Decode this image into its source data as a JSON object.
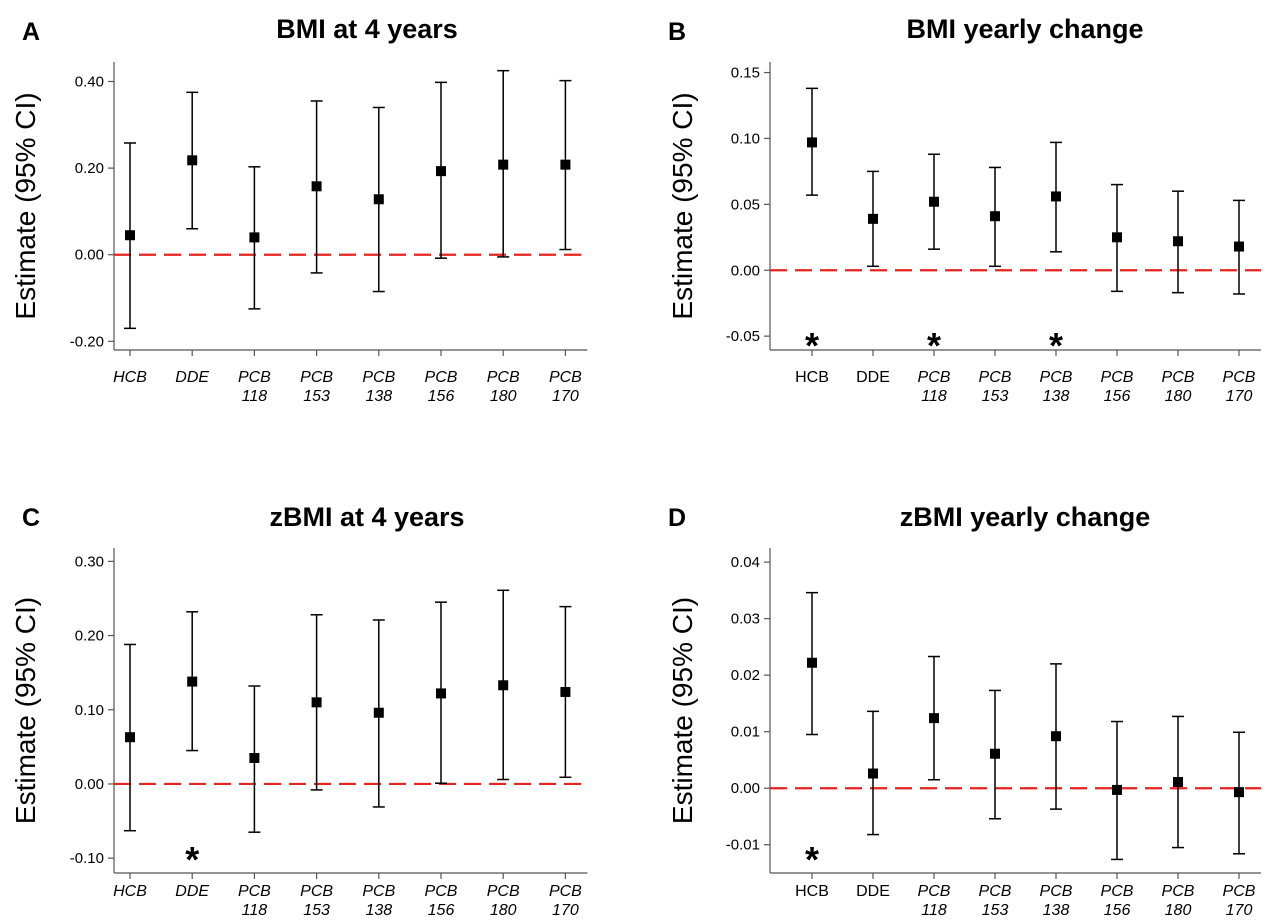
{
  "chart_data": [
    {
      "type": "scatter",
      "panel_letter": "A",
      "title": "BMI at 4 years",
      "ylabel": "Estimate (95% CI)",
      "ylim": [
        -0.22,
        0.445
      ],
      "yticks": [
        "0.40",
        "0.20",
        "0.00",
        "-0.20"
      ],
      "ytick_values": [
        0.4,
        0.2,
        0.0,
        -0.2
      ],
      "reference_line": 0,
      "italic_all_categories": true,
      "categories": [
        [
          "HCB"
        ],
        [
          "DDE"
        ],
        [
          "PCB",
          "118"
        ],
        [
          "PCB",
          "153"
        ],
        [
          "PCB",
          "138"
        ],
        [
          "PCB",
          "156"
        ],
        [
          "PCB",
          "180"
        ],
        [
          "PCB",
          "170"
        ]
      ],
      "estimate": [
        0.045,
        0.218,
        0.04,
        0.158,
        0.128,
        0.193,
        0.208,
        0.208
      ],
      "lower": [
        -0.17,
        0.06,
        -0.125,
        -0.042,
        -0.085,
        -0.008,
        -0.005,
        0.012
      ],
      "upper": [
        0.258,
        0.375,
        0.203,
        0.355,
        0.34,
        0.398,
        0.425,
        0.402
      ],
      "significance_marks": []
    },
    {
      "type": "scatter",
      "panel_letter": "B",
      "title": "BMI yearly change",
      "ylabel": "Estimate (95% CI)",
      "ylim": [
        -0.0605,
        0.158
      ],
      "yticks": [
        "0.15",
        "0.10",
        "0.05",
        "0.00",
        "-0.05"
      ],
      "ytick_values": [
        0.15,
        0.1,
        0.05,
        0.0,
        -0.05
      ],
      "reference_line": 0,
      "italic_all_categories": false,
      "categories": [
        [
          "HCB"
        ],
        [
          "DDE"
        ],
        [
          "PCB",
          "118"
        ],
        [
          "PCB",
          "153"
        ],
        [
          "PCB",
          "138"
        ],
        [
          "PCB",
          "156"
        ],
        [
          "PCB",
          "180"
        ],
        [
          "PCB",
          "170"
        ]
      ],
      "estimate": [
        0.097,
        0.039,
        0.052,
        0.041,
        0.056,
        0.025,
        0.022,
        0.018
      ],
      "lower": [
        0.057,
        0.003,
        0.016,
        0.003,
        0.014,
        -0.016,
        -0.017,
        -0.018
      ],
      "upper": [
        0.138,
        0.075,
        0.088,
        0.078,
        0.097,
        0.065,
        0.06,
        0.053
      ],
      "significance_marks": [
        "*",
        "",
        "*",
        "",
        "*",
        "",
        "",
        ""
      ]
    },
    {
      "type": "scatter",
      "panel_letter": "C",
      "title": "zBMI at 4 years",
      "ylabel": "Estimate (95% CI)",
      "ylim": [
        -0.12,
        0.318
      ],
      "yticks": [
        "0.30",
        "0.20",
        "0.10",
        "0.00",
        "-0.10"
      ],
      "ytick_values": [
        0.3,
        0.2,
        0.1,
        0.0,
        -0.1
      ],
      "reference_line": 0,
      "italic_all_categories": true,
      "categories": [
        [
          "HCB"
        ],
        [
          "DDE"
        ],
        [
          "PCB",
          "118"
        ],
        [
          "PCB",
          "153"
        ],
        [
          "PCB",
          "138"
        ],
        [
          "PCB",
          "156"
        ],
        [
          "PCB",
          "180"
        ],
        [
          "PCB",
          "170"
        ]
      ],
      "estimate": [
        0.063,
        0.138,
        0.035,
        0.11,
        0.096,
        0.122,
        0.133,
        0.124
      ],
      "lower": [
        -0.063,
        0.045,
        -0.065,
        -0.008,
        -0.031,
        0.001,
        0.006,
        0.009
      ],
      "upper": [
        0.188,
        0.232,
        0.132,
        0.228,
        0.221,
        0.245,
        0.261,
        0.239
      ],
      "significance_marks": [
        "",
        "*",
        "",
        "",
        "",
        "",
        "",
        ""
      ]
    },
    {
      "type": "scatter",
      "panel_letter": "D",
      "title": "zBMI yearly change",
      "ylabel": "Estimate (95% CI)",
      "ylim": [
        -0.015,
        0.0425
      ],
      "yticks": [
        "0.04",
        "0.03",
        "0.02",
        "0.01",
        "0.00",
        "-0.01"
      ],
      "ytick_values": [
        0.04,
        0.03,
        0.02,
        0.01,
        0.0,
        -0.01
      ],
      "reference_line": 0,
      "italic_all_categories": false,
      "categories": [
        [
          "HCB"
        ],
        [
          "DDE"
        ],
        [
          "PCB",
          "118"
        ],
        [
          "PCB",
          "153"
        ],
        [
          "PCB",
          "138"
        ],
        [
          "PCB",
          "156"
        ],
        [
          "PCB",
          "180"
        ],
        [
          "PCB",
          "170"
        ]
      ],
      "estimate": [
        0.0222,
        0.0026,
        0.0124,
        0.0061,
        0.0092,
        -0.0003,
        0.0011,
        -0.0007
      ],
      "lower": [
        0.0095,
        -0.0082,
        0.0015,
        -0.0054,
        -0.0037,
        -0.0126,
        -0.0105,
        -0.0116
      ],
      "upper": [
        0.0346,
        0.0136,
        0.0233,
        0.0173,
        0.022,
        0.0118,
        0.0127,
        0.0099
      ],
      "significance_marks": [
        "*",
        "",
        "",
        "",
        "",
        "",
        "",
        ""
      ]
    }
  ],
  "colors": {
    "points": "#000000",
    "reference_line": "#e8231f",
    "axis": "#555555"
  }
}
